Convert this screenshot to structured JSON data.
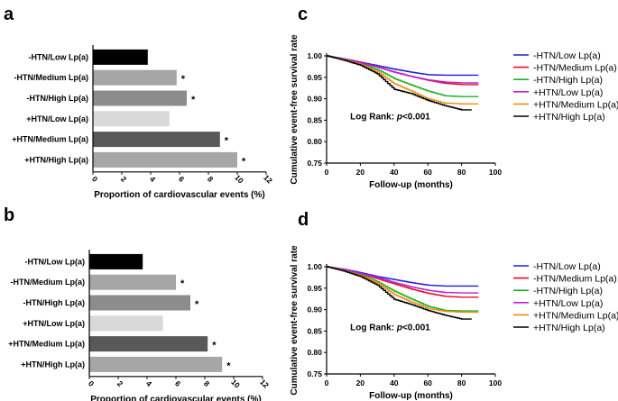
{
  "panels": {
    "a": {
      "label": "a"
    },
    "b": {
      "label": "b"
    },
    "c": {
      "label": "c"
    },
    "d": {
      "label": "d"
    }
  },
  "chart_data": [
    {
      "id": "a",
      "type": "bar",
      "orientation": "horizontal",
      "categories": [
        "-HTN/Low Lp(a)",
        "-HTN/Medium Lp(a)",
        "-HTN/High Lp(a)",
        "+HTN/Low Lp(a)",
        "+HTN/Medium Lp(a)",
        "+HTN/High Lp(a)"
      ],
      "values": [
        3.8,
        5.8,
        6.5,
        5.3,
        8.8,
        10.0
      ],
      "colors": [
        "#000000",
        "#a6a6a6",
        "#8c8c8c",
        "#d9d9d9",
        "#595959",
        "#a6a6a6"
      ],
      "significant": [
        "",
        "*",
        "*",
        "",
        "*",
        "*"
      ],
      "xlabel": "Proportion of cardiovascular events (%)",
      "xlim": [
        0,
        12
      ],
      "xticks": [
        "0",
        "2",
        "4",
        "6",
        "8",
        "10",
        "12"
      ]
    },
    {
      "id": "b",
      "type": "bar",
      "orientation": "horizontal",
      "categories": [
        "-HTN/Low Lp(a)",
        "-HTN/Medium Lp(a)",
        "-HTN/High Lp(a)",
        "+HTN/Low Lp(a)",
        "+HTN/Medium Lp(a)",
        "+HTN/High Lp(a)"
      ],
      "values": [
        3.7,
        6.0,
        7.0,
        5.1,
        8.2,
        9.2
      ],
      "colors": [
        "#000000",
        "#a6a6a6",
        "#8c8c8c",
        "#d9d9d9",
        "#595959",
        "#a6a6a6"
      ],
      "significant": [
        "",
        "*",
        "*",
        "",
        "*",
        "*"
      ],
      "xlabel": "Proportion of cardiovascular events (%)",
      "xlim": [
        0,
        12
      ],
      "xticks": [
        "0",
        "2",
        "4",
        "6",
        "8",
        "10",
        "12"
      ]
    },
    {
      "id": "c",
      "type": "line",
      "xlabel": "Follow-up (months)",
      "ylabel": "Cumulative  event-free survival rate",
      "xlim": [
        0,
        100
      ],
      "ylim": [
        0.75,
        1.0
      ],
      "xticks": [
        "0",
        "20",
        "40",
        "60",
        "80",
        "100"
      ],
      "yticks": [
        "0.75",
        "0.80",
        "0.85",
        "0.90",
        "0.95",
        "1.00"
      ],
      "annotation": {
        "prefix": "Log Rank: ",
        "p": "p",
        "suffix": "<0.001"
      },
      "series": [
        {
          "name": "-HTN/Low Lp(a)",
          "color": "#1f1fe0",
          "x": [
            0,
            10,
            20,
            30,
            40,
            50,
            60,
            70,
            80,
            90
          ],
          "y": [
            1.0,
            0.993,
            0.985,
            0.977,
            0.969,
            0.962,
            0.956,
            0.955,
            0.955,
            0.955
          ]
        },
        {
          "name": "-HTN/Medium Lp(a)",
          "color": "#e0102a",
          "x": [
            0,
            10,
            20,
            30,
            40,
            50,
            60,
            70,
            80,
            90
          ],
          "y": [
            1.0,
            0.992,
            0.984,
            0.974,
            0.962,
            0.952,
            0.943,
            0.936,
            0.933,
            0.933
          ]
        },
        {
          "name": "-HTN/High Lp(a)",
          "color": "#22b022",
          "x": [
            0,
            10,
            20,
            30,
            40,
            50,
            60,
            70,
            80,
            90
          ],
          "y": [
            1.0,
            0.992,
            0.982,
            0.968,
            0.947,
            0.932,
            0.918,
            0.907,
            0.905,
            0.905
          ]
        },
        {
          "name": "+HTN/Low Lp(a)",
          "color": "#c020d0",
          "x": [
            0,
            10,
            20,
            30,
            40,
            50,
            60,
            70,
            80,
            90
          ],
          "y": [
            1.0,
            0.992,
            0.983,
            0.974,
            0.962,
            0.952,
            0.944,
            0.939,
            0.937,
            0.937
          ]
        },
        {
          "name": "+HTN/Medium Lp(a)",
          "color": "#f08c10",
          "x": [
            0,
            10,
            20,
            30,
            40,
            50,
            60,
            70,
            80,
            90
          ],
          "y": [
            1.0,
            0.991,
            0.98,
            0.963,
            0.935,
            0.918,
            0.9,
            0.89,
            0.888,
            0.888
          ]
        },
        {
          "name": "+HTN/High Lp(a)",
          "color": "#000000",
          "x": [
            0,
            10,
            20,
            30,
            40,
            50,
            60,
            70,
            80,
            86
          ],
          "y": [
            1.0,
            0.99,
            0.978,
            0.958,
            0.922,
            0.912,
            0.896,
            0.884,
            0.874,
            0.874
          ]
        }
      ]
    },
    {
      "id": "d",
      "type": "line",
      "xlabel": "Follow-up (months)",
      "ylabel": "Cumulative  event-free survival rate",
      "xlim": [
        0,
        100
      ],
      "ylim": [
        0.75,
        1.0
      ],
      "xticks": [
        "0",
        "20",
        "40",
        "60",
        "80",
        "100"
      ],
      "yticks": [
        "0.75",
        "0.80",
        "0.85",
        "0.90",
        "0.95",
        "1.00"
      ],
      "annotation": {
        "prefix": "Log Rank: ",
        "p": "p",
        "suffix": "<0.001"
      },
      "series": [
        {
          "name": "-HTN/Low Lp(a)",
          "color": "#1f1fe0",
          "x": [
            0,
            10,
            20,
            30,
            40,
            50,
            60,
            70,
            80,
            90
          ],
          "y": [
            1.0,
            0.994,
            0.986,
            0.977,
            0.97,
            0.963,
            0.957,
            0.955,
            0.955,
            0.955
          ]
        },
        {
          "name": "-HTN/Medium Lp(a)",
          "color": "#e0102a",
          "x": [
            0,
            10,
            20,
            30,
            40,
            50,
            60,
            70,
            80,
            90
          ],
          "y": [
            1.0,
            0.992,
            0.983,
            0.972,
            0.96,
            0.948,
            0.938,
            0.931,
            0.929,
            0.929
          ]
        },
        {
          "name": "-HTN/High Lp(a)",
          "color": "#22b022",
          "x": [
            0,
            10,
            20,
            30,
            40,
            50,
            60,
            70,
            80,
            90
          ],
          "y": [
            1.0,
            0.992,
            0.981,
            0.965,
            0.943,
            0.925,
            0.908,
            0.898,
            0.897,
            0.897
          ]
        },
        {
          "name": "+HTN/Low Lp(a)",
          "color": "#c020d0",
          "x": [
            0,
            10,
            20,
            30,
            40,
            50,
            60,
            70,
            80,
            90
          ],
          "y": [
            1.0,
            0.993,
            0.984,
            0.975,
            0.963,
            0.953,
            0.945,
            0.94,
            0.939,
            0.939
          ]
        },
        {
          "name": "+HTN/Medium Lp(a)",
          "color": "#f08c10",
          "x": [
            0,
            10,
            20,
            30,
            40,
            50,
            60,
            70,
            80,
            90
          ],
          "y": [
            1.0,
            0.991,
            0.979,
            0.962,
            0.935,
            0.918,
            0.903,
            0.896,
            0.894,
            0.894
          ]
        },
        {
          "name": "+HTN/High Lp(a)",
          "color": "#000000",
          "x": [
            0,
            10,
            20,
            30,
            40,
            50,
            60,
            70,
            80,
            86
          ],
          "y": [
            1.0,
            0.99,
            0.977,
            0.957,
            0.924,
            0.912,
            0.898,
            0.887,
            0.878,
            0.878
          ]
        }
      ]
    }
  ]
}
